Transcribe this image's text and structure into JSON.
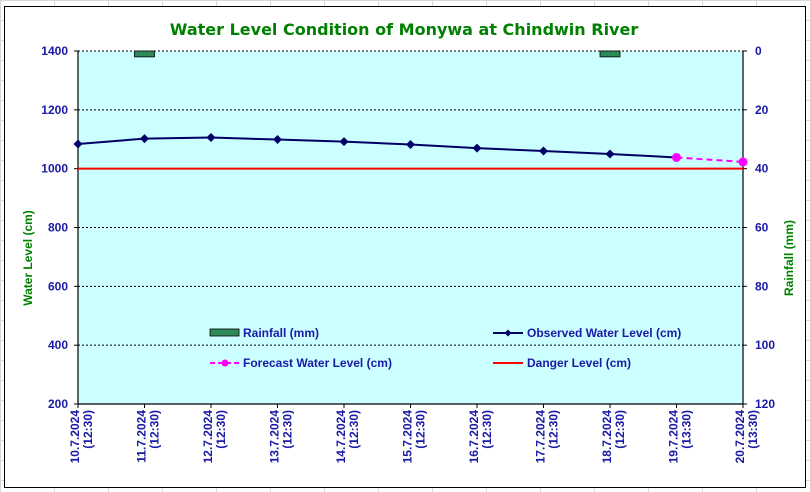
{
  "chart_data": {
    "type": "line",
    "title": "Water Level Condition of Monywa at Chindwin River",
    "xlabel": "",
    "ylabel": "Water Level (cm)",
    "y2label": "Rainfall (mm)",
    "ylim": [
      200,
      1400
    ],
    "y_ticks": [
      "1400",
      "1200",
      "1000",
      "800",
      "600",
      "400",
      "200"
    ],
    "y2lim": [
      0,
      120
    ],
    "y2_inverted": true,
    "y2_ticks": [
      "0",
      "20",
      "40",
      "60",
      "80",
      "100",
      "120"
    ],
    "grid": true,
    "categories": [
      [
        "10.7.2024",
        "(12:30)"
      ],
      [
        "11.7.2024",
        "(12:30)"
      ],
      [
        "12.7.2024",
        "(12:30)"
      ],
      [
        "13.7.2024",
        "(12:30)"
      ],
      [
        "14.7.2024",
        "(12:30)"
      ],
      [
        "15.7.2024",
        "(12:30)"
      ],
      [
        "16.7.2024",
        "(12:30)"
      ],
      [
        "17.7.2024",
        "(12:30)"
      ],
      [
        "18.7.2024",
        "(12:30)"
      ],
      [
        "19.7.2024",
        "(13:30)"
      ],
      [
        "20.7.2024",
        "(13:30)"
      ]
    ],
    "series": [
      {
        "name": "Rainfall (mm)",
        "type": "bar",
        "axis": "right",
        "color": "#2e8b57",
        "values": [
          null,
          2,
          null,
          null,
          null,
          null,
          null,
          null,
          2,
          null,
          null
        ]
      },
      {
        "name": "Observed Water Level (cm)",
        "type": "line",
        "marker": "diamond",
        "color": "#000066",
        "values": [
          1084,
          1102,
          1106,
          1099,
          1092,
          1082,
          1070,
          1060,
          1050,
          1038,
          null
        ]
      },
      {
        "name": "Forecast Water Level (cm)",
        "type": "line",
        "dashed": true,
        "marker": "circle",
        "color": "#ff00ff",
        "values": [
          null,
          null,
          null,
          null,
          null,
          null,
          null,
          null,
          null,
          1038,
          1023
        ]
      },
      {
        "name": "Danger Level (cm)",
        "type": "line",
        "color": "#ff0000",
        "values": [
          1000,
          1000,
          1000,
          1000,
          1000,
          1000,
          1000,
          1000,
          1000,
          1000,
          1000
        ]
      }
    ],
    "legend": {
      "placement": "bottom-inside",
      "entries": [
        "Rainfall (mm)",
        "Observed Water Level (cm)",
        "Forecast Water Level (cm)",
        "Danger Level (cm)"
      ]
    },
    "plot_background": "#ccffff"
  }
}
